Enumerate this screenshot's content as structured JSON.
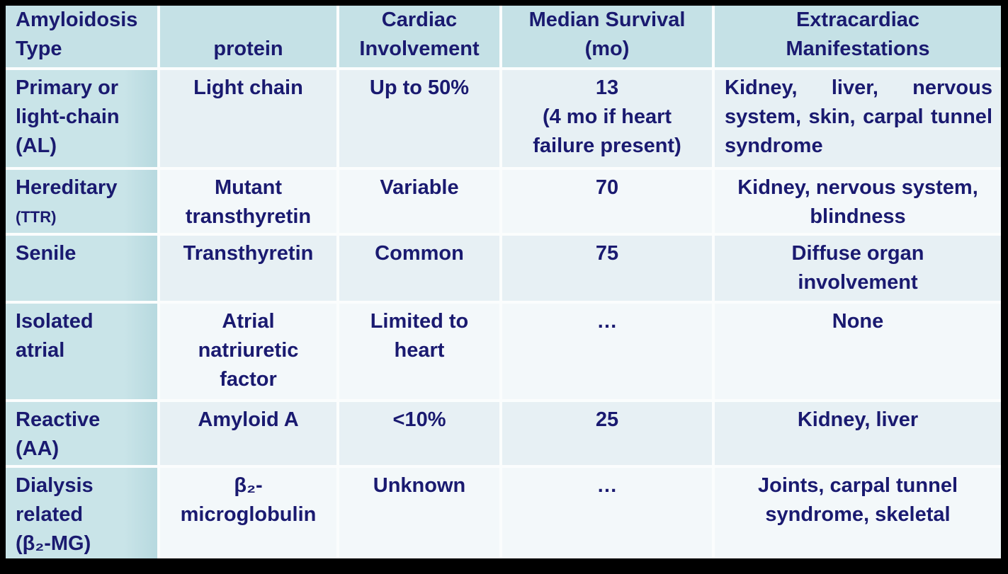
{
  "colors": {
    "background": "#000000",
    "header_fill": "#c5e1e6",
    "row_band_dark": "#e7f0f4",
    "row_band_light": "#f3f8fa",
    "grid_line": "#fbfdfd",
    "text": "#1a1a70"
  },
  "table": {
    "headers": [
      "Amyloidosis\nType",
      "protein",
      "Cardiac\nInvolvement",
      "Median Survival\n(mo)",
      "Extracardiac\nManifestations"
    ],
    "rows": [
      {
        "type": "Primary or\nlight-chain\n(AL)",
        "type_small": "",
        "protein": "Light chain",
        "cardiac": "Up to 50%",
        "survival": "13\n(4 mo if heart\nfailure present)",
        "extracardiac": "Kidney, liver, nervous system, skin, carpal tunnel syndrome"
      },
      {
        "type": "Hereditary",
        "type_small": "(TTR)",
        "protein": "Mutant\ntransthyretin",
        "cardiac": "Variable",
        "survival": "70",
        "extracardiac": "Kidney, nervous system,\nblindness"
      },
      {
        "type": "Senile",
        "type_small": "",
        "protein": "Transthyretin",
        "cardiac": "Common",
        "survival": "75",
        "extracardiac": "Diffuse organ\ninvolvement"
      },
      {
        "type": "Isolated\natrial",
        "type_small": "",
        "protein": "Atrial\nnatriuretic\nfactor",
        "cardiac": "Limited to\nheart",
        "survival": "…",
        "extracardiac": "None"
      },
      {
        "type": "Reactive\n(AA)",
        "type_small": "",
        "protein": "Amyloid A",
        "cardiac": "<10%",
        "survival": "25",
        "extracardiac": "Kidney, liver"
      },
      {
        "type": "Dialysis\nrelated\n(β₂-MG)",
        "type_small": "",
        "protein": "β₂-\nmicroglobulin",
        "cardiac": "Unknown",
        "survival": "…",
        "extracardiac": "Joints, carpal tunnel\nsyndrome, skeletal"
      }
    ]
  }
}
